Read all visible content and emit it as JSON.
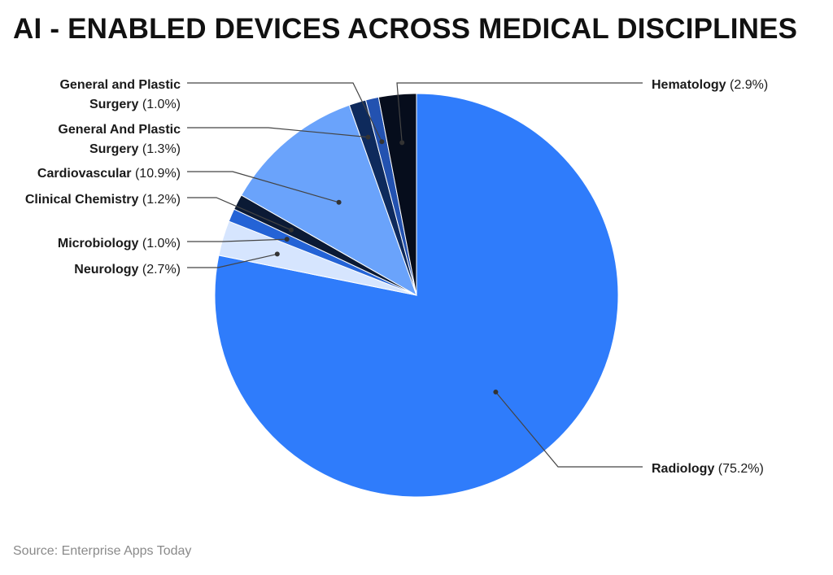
{
  "title": "AI - ENABLED DEVICES ACROSS MEDICAL DISCIPLINES",
  "source": "Source: Enterprise Apps Today",
  "chart_data": {
    "type": "pie",
    "title": "AI - ENABLED DEVICES ACROSS MEDICAL DISCIPLINES",
    "start": "top, clockwise",
    "slices": [
      {
        "name": "Radiology",
        "name_lines": [
          "Radiology"
        ],
        "pct_text": "(75.2%)",
        "value": 75.2,
        "color": "#2f7cfb"
      },
      {
        "name": "Neurology",
        "name_lines": [
          "Neurology"
        ],
        "pct_text": "(2.7%)",
        "value": 2.7,
        "color": "#d6e5fe"
      },
      {
        "name": "Microbiology",
        "name_lines": [
          "Microbiology"
        ],
        "pct_text": "(1.0%)",
        "value": 1.0,
        "color": "#2463d6"
      },
      {
        "name": "Clinical Chemistry",
        "name_lines": [
          "Clinical Chemistry"
        ],
        "pct_text": "(1.2%)",
        "value": 1.2,
        "color": "#0b1a35"
      },
      {
        "name": "Cardiovascular",
        "name_lines": [
          "Cardiovascular"
        ],
        "pct_text": "(10.9%)",
        "value": 10.9,
        "color": "#6aa3fb"
      },
      {
        "name": "General And Plastic Surgery",
        "name_lines": [
          "General And Plastic",
          "Surgery"
        ],
        "pct_text": "(1.3%)",
        "value": 1.3,
        "color": "#0e2a5c"
      },
      {
        "name": "General and Plastic Surgery",
        "name_lines": [
          "General and Plastic",
          "Surgery"
        ],
        "pct_text": "(1.0%)",
        "value": 1.0,
        "color": "#2352b0"
      },
      {
        "name": "Hematology",
        "name_lines": [
          "Hematology"
        ],
        "pct_text": "(2.9%)",
        "value": 2.9,
        "color": "#060d1c"
      }
    ]
  }
}
